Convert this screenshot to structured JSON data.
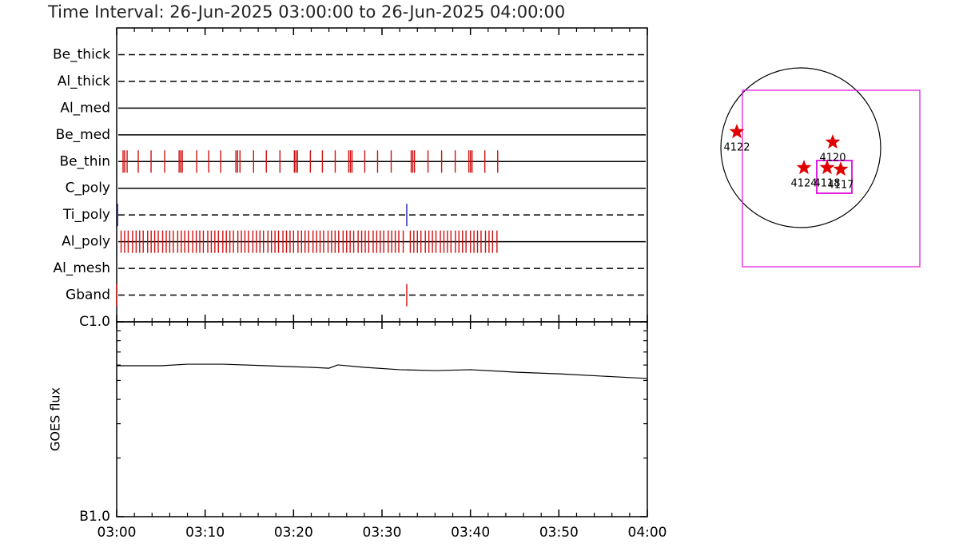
{
  "chart_data": [
    {
      "type": "timeline",
      "title": "Time Interval: 26-Jun-2025 03:00:00 to 26-Jun-2025 04:00:00",
      "xlim": [
        0,
        60
      ],
      "series": [
        {
          "name": "Be_thick",
          "style": "dashed",
          "values": []
        },
        {
          "name": "Al_thick",
          "style": "dashed",
          "values": []
        },
        {
          "name": "Al_med",
          "style": "solid",
          "values": []
        },
        {
          "name": "Be_med",
          "style": "solid",
          "values": []
        },
        {
          "name": "Be_thin",
          "style": "solid",
          "color": "#d01010",
          "values": [
            0.72,
            0.9,
            1.18,
            2.44,
            3.89,
            5.43,
            7.06,
            7.24,
            7.42,
            9.05,
            10.41,
            11.76,
            13.48,
            13.67,
            13.94,
            15.48,
            16.92,
            18.46,
            20.09,
            20.27,
            20.45,
            21.9,
            23.26,
            24.71,
            26.24,
            26.43,
            26.61,
            28.05,
            29.5,
            31.04,
            33.3,
            33.48,
            33.67,
            35.2,
            36.74,
            38.28,
            39.82,
            40.0,
            40.18,
            41.63,
            43.08
          ]
        },
        {
          "name": "C_poly",
          "style": "solid",
          "values": []
        },
        {
          "name": "Ti_poly",
          "style": "dashed",
          "color": "#2020b0",
          "values": [
            0.1,
            32.8
          ]
        },
        {
          "name": "Al_poly",
          "style": "solid",
          "color": "#d01010",
          "values": [
            0.5,
            0.9,
            1.3,
            1.8,
            2.2,
            2.6,
            3.0,
            3.5,
            3.9,
            4.3,
            4.7,
            5.2,
            5.6,
            6.0,
            6.4,
            6.9,
            7.3,
            7.7,
            8.1,
            8.6,
            9.0,
            9.4,
            9.8,
            10.3,
            10.7,
            11.1,
            11.5,
            12.0,
            12.4,
            12.8,
            13.2,
            13.7,
            14.1,
            14.5,
            14.9,
            15.4,
            15.8,
            16.2,
            16.6,
            17.1,
            17.5,
            17.9,
            18.3,
            18.8,
            19.2,
            19.6,
            20.0,
            20.5,
            20.9,
            21.3,
            21.7,
            22.2,
            22.6,
            23.0,
            23.4,
            23.9,
            24.3,
            24.7,
            25.1,
            25.6,
            26.0,
            26.4,
            26.8,
            27.3,
            27.7,
            28.1,
            28.5,
            29.0,
            29.4,
            29.8,
            30.2,
            30.7,
            31.1,
            31.5,
            31.9,
            32.4,
            33.2,
            33.6,
            34.0,
            34.4,
            34.9,
            35.3,
            35.7,
            36.1,
            36.6,
            37.0,
            37.4,
            37.8,
            38.3,
            38.7,
            39.1,
            39.5,
            40.0,
            40.4,
            40.8,
            41.2,
            41.7,
            42.1,
            42.5,
            43.0
          ]
        },
        {
          "name": "Al_mesh",
          "style": "dashed",
          "values": []
        },
        {
          "name": "Gband",
          "style": "dashed",
          "color": "#d01010",
          "values": [
            0.0,
            32.8
          ]
        }
      ]
    },
    {
      "type": "line",
      "ylabel": "GOES flux",
      "log_y": true,
      "color": "#000000",
      "x": [
        0,
        5,
        8,
        12,
        17,
        22,
        24,
        25,
        28,
        32,
        36,
        40,
        45,
        50,
        55,
        60
      ],
      "values": [
        5.95e-07,
        5.95e-07,
        6.06e-07,
        6.06e-07,
        5.95e-07,
        5.84e-07,
        5.78e-07,
        6.01e-07,
        5.84e-07,
        5.68e-07,
        5.62e-07,
        5.68e-07,
        5.52e-07,
        5.41e-07,
        5.26e-07,
        5.12e-07
      ],
      "xlim": [
        0,
        60
      ],
      "xticks": [
        {
          "value": 0,
          "label": "03:00"
        },
        {
          "value": 10,
          "label": "03:10"
        },
        {
          "value": 20,
          "label": "03:20"
        },
        {
          "value": 30,
          "label": "03:30"
        },
        {
          "value": 40,
          "label": "03:40"
        },
        {
          "value": 50,
          "label": "03:50"
        },
        {
          "value": 60,
          "label": "04:00"
        }
      ],
      "xminorticks": [
        2,
        4,
        6,
        8,
        12,
        14,
        16,
        18,
        22,
        24,
        26,
        28,
        32,
        34,
        36,
        38,
        42,
        44,
        46,
        48,
        52,
        54,
        56,
        58
      ],
      "ylim": [
        1e-07,
        1e-06
      ],
      "yticks": [
        {
          "value": 1e-07,
          "label": "B1.0"
        },
        {
          "value": 1e-06,
          "label": "C1.0"
        }
      ],
      "yminorticks": [
        2e-07,
        3e-07,
        4e-07,
        5e-07,
        6e-07,
        7e-07,
        8e-07,
        9e-07
      ]
    },
    {
      "type": "map",
      "xlim": [
        -1000,
        1000
      ],
      "ylim": [
        -1000,
        1000
      ],
      "disk_radius": 1000,
      "box_color": "#e020e0",
      "point_color": "#e00000",
      "boxes": [
        {
          "x": [
            -730,
            1490
          ],
          "y": [
            720,
            -1490
          ]
        },
        {
          "x": [
            200,
            640
          ],
          "y": [
            -160,
            -570
          ]
        }
      ],
      "points": [
        {
          "name": "4122",
          "x": -800,
          "y": 200
        },
        {
          "name": "4120",
          "x": 400,
          "y": 70
        },
        {
          "name": "4124",
          "x": 40,
          "y": -250
        },
        {
          "name": "4118",
          "x": 330,
          "y": -250
        },
        {
          "name": "4117",
          "x": 500,
          "y": -270
        }
      ]
    }
  ]
}
